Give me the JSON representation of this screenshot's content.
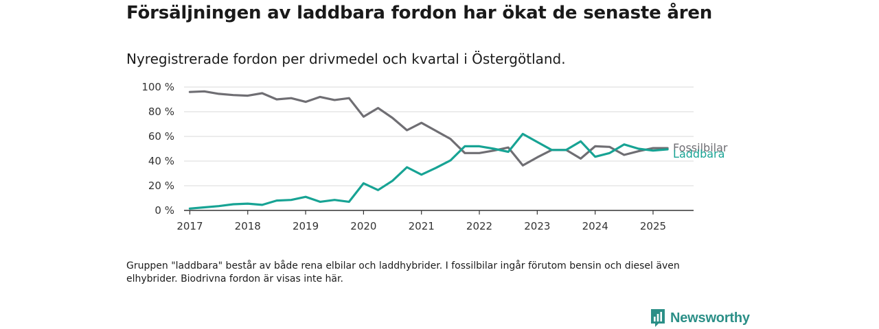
{
  "title": "Försäljningen av laddbara fordon har ökat de senaste åren",
  "subtitle": "Nyregistrerade fordon per drivmedel och kvartal i Östergötland.",
  "footnote": "Gruppen \"laddbara\" består av både rena elbilar och laddhybrider. I fossilbilar ingår förutom bensin och diesel även elhybrider. Biodrivna fordon är visas inte här.",
  "logo": {
    "text": "Newsworthy",
    "icon": "newsworthy-bar-chart-icon",
    "color": "#2b8f87"
  },
  "chart_data": {
    "type": "line",
    "ylim": [
      0,
      100
    ],
    "yticks": [
      0,
      20,
      40,
      60,
      80,
      100
    ],
    "ytick_labels": [
      "0 %",
      "20 %",
      "40 %",
      "60 %",
      "80 %",
      "100 %"
    ],
    "xlim": [
      2016.9,
      2025.7
    ],
    "xticks": [
      2017,
      2018,
      2019,
      2020,
      2021,
      2022,
      2023,
      2024,
      2025
    ],
    "xtick_labels": [
      "2017",
      "2018",
      "2019",
      "2020",
      "2021",
      "2022",
      "2023",
      "2024",
      "2025"
    ],
    "grid": true,
    "x": [
      2017.0,
      2017.25,
      2017.5,
      2017.75,
      2018.0,
      2018.25,
      2018.5,
      2018.75,
      2019.0,
      2019.25,
      2019.5,
      2019.75,
      2020.0,
      2020.25,
      2020.5,
      2020.75,
      2021.0,
      2021.25,
      2021.5,
      2021.75,
      2022.0,
      2022.25,
      2022.5,
      2022.75,
      2023.0,
      2023.25,
      2023.5,
      2023.75,
      2024.0,
      2024.25,
      2024.5,
      2024.75,
      2025.0,
      2025.25
    ],
    "series": [
      {
        "name": "Fossilbilar",
        "color": "#6f6e73",
        "values": [
          96,
          96.5,
          94.5,
          93.5,
          93,
          95,
          90,
          91,
          88,
          92,
          89.5,
          91,
          76,
          83,
          75,
          65,
          71,
          64.5,
          58,
          46.5,
          46.5,
          48.5,
          51,
          36.5,
          43,
          49,
          49,
          42,
          52,
          51.5,
          45,
          48,
          50.5,
          50.5
        ]
      },
      {
        "name": "Laddbara",
        "color": "#17a394",
        "values": [
          1.5,
          2.5,
          3.5,
          5,
          5.5,
          4.5,
          8,
          8.5,
          11,
          7,
          8.5,
          7,
          22,
          16.5,
          24,
          35,
          29,
          34.5,
          40.5,
          52,
          52,
          50,
          47.5,
          62,
          55.5,
          49,
          49,
          56,
          43.5,
          46.5,
          53.5,
          50,
          48.5,
          49.5
        ]
      }
    ]
  }
}
